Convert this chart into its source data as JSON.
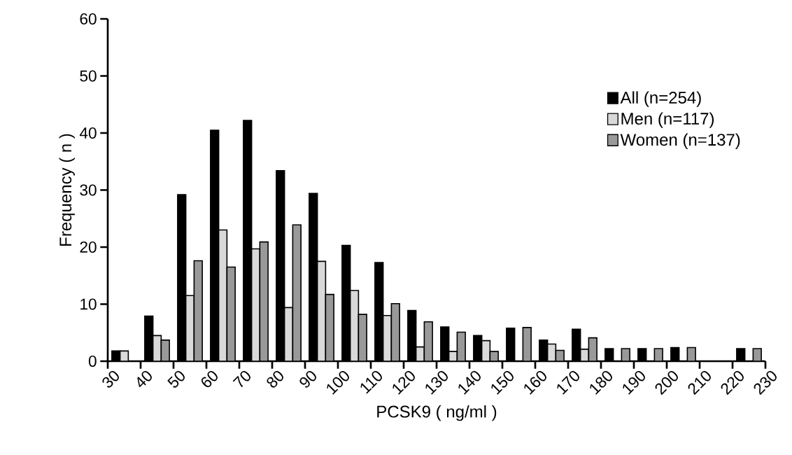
{
  "chart_data": {
    "type": "bar",
    "xlabel": "PCSK9 ( ng/ml )",
    "ylabel": "Frequency ( n )",
    "x": [
      35,
      45,
      55,
      65,
      75,
      85,
      95,
      105,
      115,
      125,
      135,
      145,
      155,
      165,
      175,
      185,
      195,
      205,
      215,
      225
    ],
    "series": [
      {
        "name": "All  (n=254)",
        "color": "#000000",
        "values": [
          1.8,
          7.9,
          29.2,
          40.5,
          42.2,
          33.4,
          29.4,
          20.3,
          17.3,
          8.9,
          6.0,
          4.5,
          5.8,
          3.7,
          5.6,
          2.2,
          2.2,
          2.4,
          0,
          2.2
        ]
      },
      {
        "name": "Men (n=117)",
        "color": "#d9d9d9",
        "values": [
          1.8,
          4.5,
          11.5,
          23.0,
          19.7,
          9.4,
          17.5,
          12.4,
          8.0,
          2.5,
          1.7,
          3.6,
          0,
          3.0,
          2.1,
          0,
          0,
          0,
          0,
          0
        ]
      },
      {
        "name": "Women (n=137)",
        "color": "#999999",
        "values": [
          0,
          3.7,
          17.6,
          16.5,
          20.9,
          23.9,
          11.7,
          8.2,
          10.1,
          6.9,
          5.1,
          1.7,
          5.9,
          1.9,
          4.1,
          2.2,
          2.2,
          2.4,
          0,
          2.2
        ]
      }
    ],
    "xlim": [
      30,
      230
    ],
    "xticks": [
      30,
      40,
      50,
      60,
      70,
      80,
      90,
      100,
      110,
      120,
      130,
      140,
      150,
      160,
      170,
      180,
      190,
      200,
      210,
      220,
      230
    ],
    "ylim": [
      0,
      60
    ],
    "yticks": [
      0,
      10,
      20,
      30,
      40,
      50,
      60
    ],
    "legend": "top right",
    "grid": false
  }
}
